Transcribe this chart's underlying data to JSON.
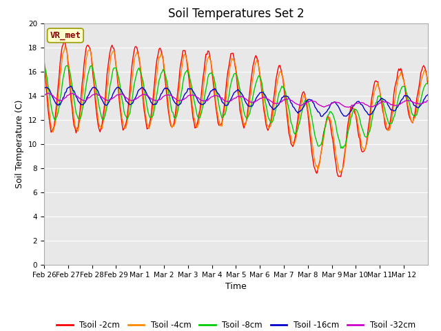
{
  "title": "Soil Temperatures Set 2",
  "xlabel": "Time",
  "ylabel": "Soil Temperature (C)",
  "ylim": [
    0,
    20
  ],
  "yticks": [
    0,
    2,
    4,
    6,
    8,
    10,
    12,
    14,
    16,
    18,
    20
  ],
  "xlim": [
    0,
    384
  ],
  "fig_facecolor": "#ffffff",
  "plot_facecolor": "#e8e8e8",
  "annotation_text": "VR_met",
  "annotation_color": "#8B0000",
  "annotation_bg": "#ffffcc",
  "annotation_edge": "#999900",
  "color_2cm": "#ff0000",
  "color_4cm": "#ff8800",
  "color_8cm": "#00cc00",
  "color_16cm": "#0000cc",
  "color_32cm": "#cc00cc",
  "xtick_labels": [
    "Feb 26",
    "Feb 27",
    "Feb 28",
    "Feb 29",
    "Mar 1",
    "Mar 2",
    "Mar 3",
    "Mar 4",
    "Mar 5",
    "Mar 6",
    "Mar 7",
    "Mar 8",
    "Mar 9",
    "Mar 10",
    "Mar 11",
    "Mar 12"
  ],
  "xtick_positions": [
    0,
    24,
    48,
    72,
    96,
    120,
    144,
    168,
    192,
    216,
    240,
    264,
    288,
    312,
    336,
    360
  ],
  "title_fontsize": 12,
  "label_fontsize": 9,
  "tick_fontsize": 7.5,
  "legend_fontsize": 8.5,
  "linewidth": 1.0
}
